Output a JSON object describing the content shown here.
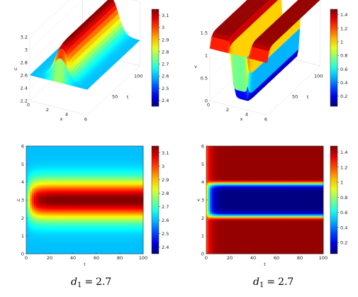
{
  "chart_data": [
    {
      "id": "u-surface",
      "type": "surface",
      "xlabel": "x",
      "ylabel": "t",
      "zlabel": "u",
      "xlim": [
        0,
        6
      ],
      "ylim": [
        0,
        120
      ],
      "zlim": [
        2.2,
        3.2
      ],
      "xticks": [
        "0",
        "2",
        "4",
        "6"
      ],
      "yticks": [
        "50",
        "100"
      ],
      "zticks": [
        "2.2",
        "2.4",
        "2.6",
        "2.8",
        "3",
        "3.2"
      ],
      "colorbar": {
        "min": 2.35,
        "max": 3.15,
        "ticks": [
          "3.1",
          "3",
          "2.9",
          "2.8",
          "2.7",
          "2.6",
          "2.5",
          "2.4"
        ]
      },
      "profile": {
        "base": 2.6,
        "peak": 3.15,
        "peak_x": 3.0,
        "width": 1.05,
        "initial": 2.6
      },
      "colormap": "jet"
    },
    {
      "id": "v-surface",
      "type": "surface",
      "xlabel": "x",
      "ylabel": "t",
      "zlabel": "v",
      "xlim": [
        0,
        6
      ],
      "ylim": [
        0,
        120
      ],
      "zlim": [
        0,
        1.5
      ],
      "xticks": [
        "0",
        "2",
        "4",
        "6"
      ],
      "yticks": [
        "50",
        "100"
      ],
      "zticks": [
        "0",
        "0.5",
        "1",
        "1.5"
      ],
      "colorbar": {
        "min": 0.05,
        "max": 1.48,
        "ticks": [
          "1.4",
          "1.2",
          "1",
          "0.8",
          "0.6",
          "0.4",
          "0.2"
        ]
      },
      "profile": {
        "base": 1.45,
        "trough": 0.05,
        "trough_x": 3.0,
        "width": 0.95,
        "initial": 1.15
      },
      "colormap": "jet"
    },
    {
      "id": "u-heatmap",
      "type": "heatmap",
      "xlabel": "t",
      "ylabel": "u",
      "xlim": [
        0,
        100
      ],
      "ylim": [
        0,
        6
      ],
      "xticks": [
        "0",
        "20",
        "40",
        "60",
        "80",
        "100"
      ],
      "yticks": [
        "0",
        "1",
        "2",
        "3",
        "4",
        "5",
        "6"
      ],
      "colorbar": {
        "min": 2.35,
        "max": 3.15,
        "ticks": [
          "3.1",
          "3",
          "2.9",
          "2.8",
          "2.7",
          "2.6",
          "2.5",
          "2.4"
        ]
      },
      "colormap": "jet"
    },
    {
      "id": "v-heatmap",
      "type": "heatmap",
      "xlabel": "t",
      "ylabel": "v",
      "xlim": [
        0,
        100
      ],
      "ylim": [
        0,
        6
      ],
      "xticks": [
        "0",
        "20",
        "40",
        "60",
        "80",
        "100"
      ],
      "yticks": [
        "0",
        "1",
        "2",
        "3",
        "4",
        "5",
        "6"
      ],
      "colorbar": {
        "min": 0.05,
        "max": 1.48,
        "ticks": [
          "1.4",
          "1.2",
          "1",
          "0.8",
          "0.6",
          "0.4",
          "0.2"
        ]
      },
      "colormap": "jet"
    }
  ],
  "captions": {
    "left": {
      "var": "d",
      "sub": "1",
      "eq": "=",
      "value": "2.7"
    },
    "right": {
      "var": "d",
      "sub": "1",
      "eq": "=",
      "value": "2.7"
    }
  }
}
